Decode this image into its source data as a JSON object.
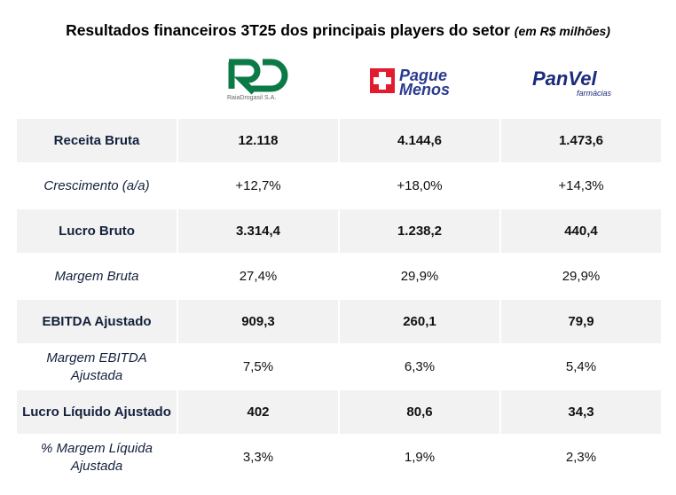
{
  "title": "Resultados financeiros 3T25 dos principais players do setor",
  "subtitle": "(em R$ milhões)",
  "logos": [
    {
      "name": "RD",
      "caption": "RaiaDrogasil S.A.",
      "color": "#0b7a46"
    },
    {
      "name": "Pague Menos",
      "line1": "Pague",
      "line2": "Menos",
      "color": "#2a3b8f",
      "cross_color": "#e31b2f"
    },
    {
      "name": "PanVel",
      "line1": "PanVel",
      "line2": "farmácias",
      "color": "#1c2a7d"
    }
  ],
  "rows": [
    {
      "label": "Receita Bruta",
      "bold": true,
      "values": [
        "12.118",
        "4.144,6",
        "1.473,6"
      ]
    },
    {
      "label": "Crescimento (a/a)",
      "bold": false,
      "values": [
        "+12,7%",
        "+18,0%",
        "+14,3%"
      ]
    },
    {
      "label": "Lucro Bruto",
      "bold": true,
      "values": [
        "3.314,4",
        "1.238,2",
        "440,4"
      ]
    },
    {
      "label": "Margem Bruta",
      "bold": false,
      "values": [
        "27,4%",
        "29,9%",
        "29,9%"
      ]
    },
    {
      "label": "EBITDA Ajustado",
      "bold": true,
      "values": [
        "909,3",
        "260,1",
        "79,9"
      ]
    },
    {
      "label": "Margem EBITDA Ajustada",
      "bold": false,
      "values": [
        "7,5%",
        "6,3%",
        "5,4%"
      ]
    },
    {
      "label": "Lucro Líquido Ajustado",
      "bold": true,
      "values": [
        "402",
        "80,6",
        "34,3"
      ]
    },
    {
      "label": "% Margem Líquida Ajustada",
      "bold": false,
      "values": [
        "3,3%",
        "1,9%",
        "2,3%"
      ]
    }
  ]
}
